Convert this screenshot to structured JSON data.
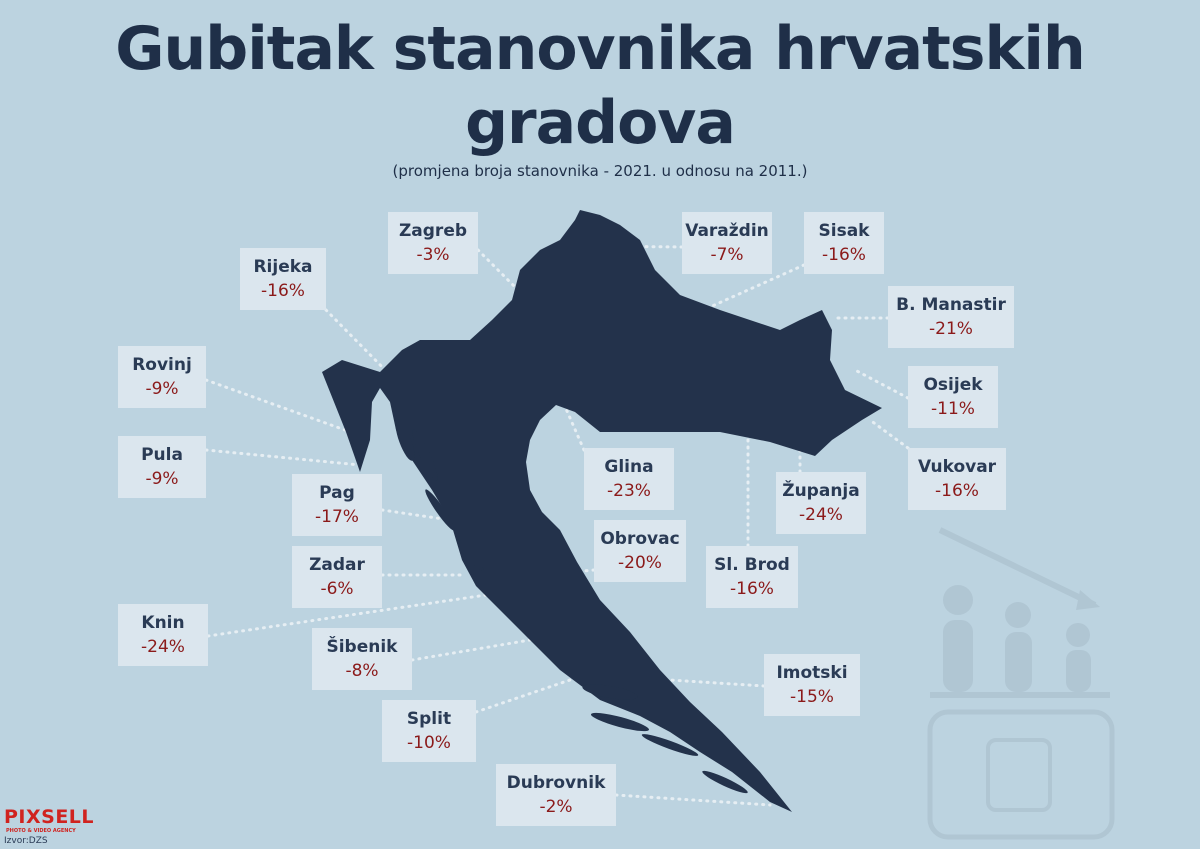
{
  "header": {
    "title_line1": "Gubitak stanovnika hrvatskih",
    "title_line2": "gradova",
    "subtitle": "(promjena broja stanovnika - 2021. u odnosu na 2011.)"
  },
  "cities": [
    {
      "name": "Zagreb",
      "change": "-3%"
    },
    {
      "name": "Varaždin",
      "change": "-7%"
    },
    {
      "name": "Sisak",
      "change": "-16%"
    },
    {
      "name": "Rijeka",
      "change": "-16%"
    },
    {
      "name": "B. Manastir",
      "change": "-21%"
    },
    {
      "name": "Rovinj",
      "change": "-9%"
    },
    {
      "name": "Osijek",
      "change": "-11%"
    },
    {
      "name": "Pula",
      "change": "-9%"
    },
    {
      "name": "Glina",
      "change": "-23%"
    },
    {
      "name": "Županja",
      "change": "-24%"
    },
    {
      "name": "Vukovar",
      "change": "-16%"
    },
    {
      "name": "Pag",
      "change": "-17%"
    },
    {
      "name": "Obrovac",
      "change": "-20%"
    },
    {
      "name": "Sl. Brod",
      "change": "-16%"
    },
    {
      "name": "Zadar",
      "change": "-6%"
    },
    {
      "name": "Knin",
      "change": "-24%"
    },
    {
      "name": "Šibenik",
      "change": "-8%"
    },
    {
      "name": "Imotski",
      "change": "-15%"
    },
    {
      "name": "Split",
      "change": "-10%"
    },
    {
      "name": "Dubrovnik",
      "change": "-2%"
    }
  ],
  "footer": {
    "logo": "PIXSELL",
    "logo_tagline": "PHOTO & VIDEO AGENCY",
    "source": "Izvor:DZS"
  }
}
